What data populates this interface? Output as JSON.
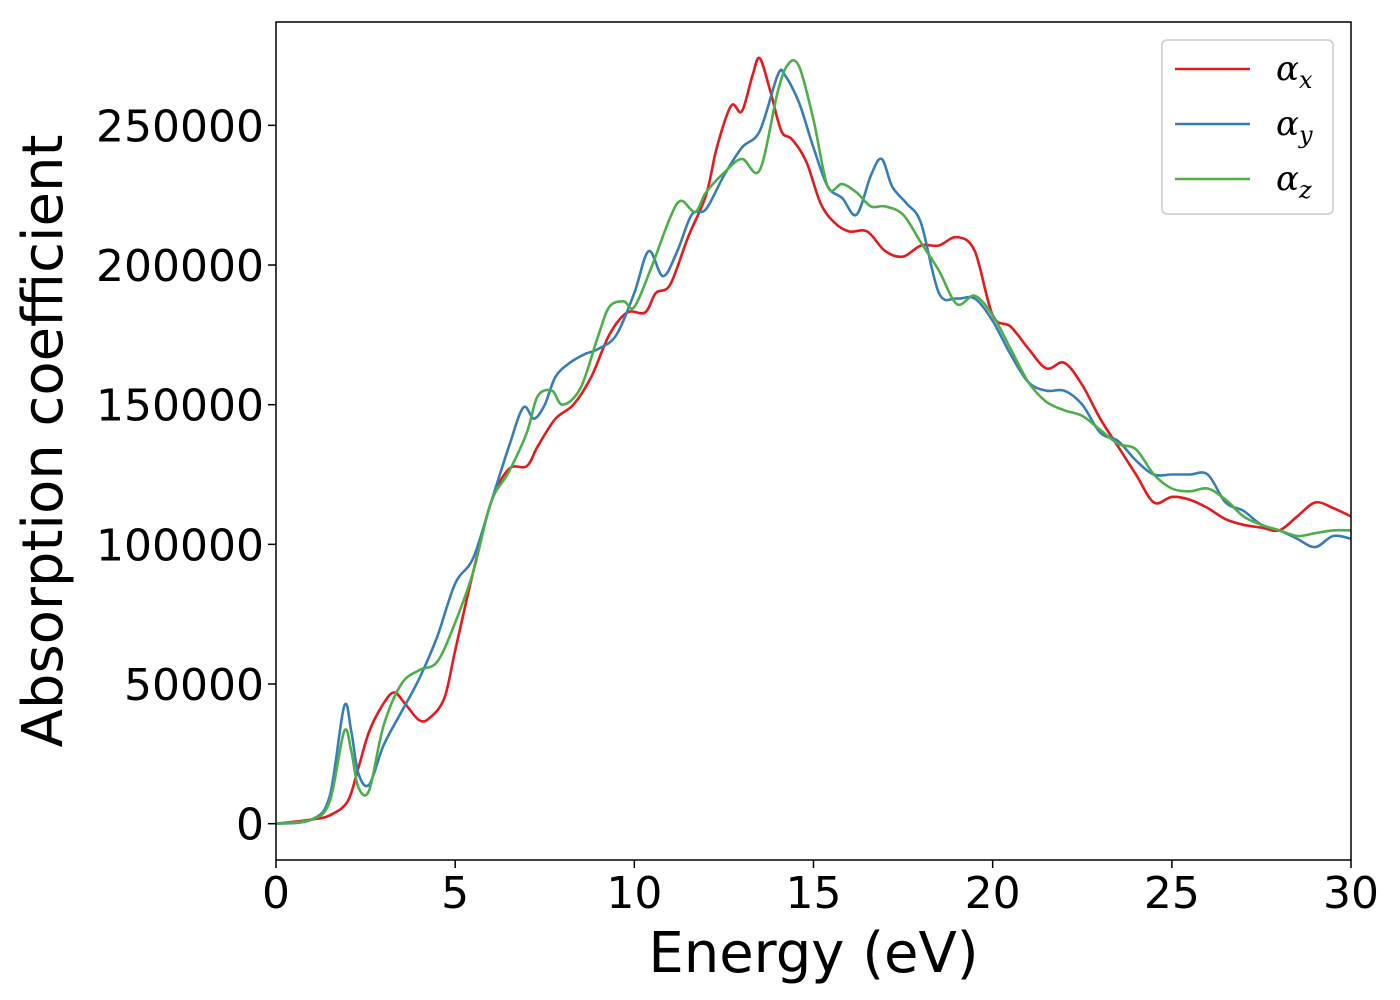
{
  "chart_data": {
    "type": "line",
    "xlabel": "Energy (eV)",
    "ylabel": "Absorption coefficient",
    "xlim": [
      0,
      30
    ],
    "ylim": [
      -13000,
      287000
    ],
    "xticks": [
      0,
      5,
      10,
      15,
      20,
      25,
      30
    ],
    "yticks": [
      0,
      50000,
      100000,
      150000,
      200000,
      250000
    ],
    "xtick_labels": [
      "0",
      "5",
      "10",
      "15",
      "20",
      "25",
      "30"
    ],
    "ytick_labels": [
      "0",
      "50000",
      "100000",
      "150000",
      "200000",
      "250000"
    ],
    "grid": false,
    "legend_position": "top-right",
    "legend": [
      {
        "symbol": "α",
        "subscript": "x",
        "color": "#e41a1c"
      },
      {
        "symbol": "α",
        "subscript": "y",
        "color": "#377eb8"
      },
      {
        "symbol": "α",
        "subscript": "z",
        "color": "#4daf4a"
      }
    ],
    "series": [
      {
        "name": "αx",
        "color": "#e41a1c",
        "x": [
          0,
          1,
          1.5,
          2,
          2.3,
          2.6,
          3,
          3.3,
          3.6,
          4,
          4.3,
          4.7,
          5,
          5.5,
          6,
          6.5,
          7,
          7.3,
          7.8,
          8.3,
          8.8,
          9.3,
          9.8,
          10.3,
          10.6,
          11,
          11.5,
          12,
          12.3,
          12.7,
          13,
          13.3,
          13.5,
          13.8,
          14.1,
          14.4,
          14.8,
          15.2,
          15.6,
          16,
          16.5,
          17,
          17.5,
          18,
          18.5,
          19,
          19.5,
          20,
          20.5,
          21,
          21.5,
          22,
          22.5,
          23,
          23.5,
          24,
          24.5,
          25,
          25.5,
          26,
          26.5,
          27,
          27.5,
          28,
          28.5,
          29,
          29.5,
          30
        ],
        "y": [
          0,
          1500,
          3000,
          8000,
          20000,
          33000,
          43000,
          47000,
          43000,
          37000,
          38000,
          45000,
          62000,
          90000,
          115000,
          127000,
          128000,
          135000,
          145000,
          150000,
          160000,
          175000,
          183000,
          183000,
          190000,
          193000,
          210000,
          225000,
          242000,
          257000,
          255000,
          268000,
          274000,
          262000,
          248000,
          245000,
          237000,
          222000,
          215000,
          212000,
          212000,
          205000,
          203000,
          207000,
          207000,
          210000,
          205000,
          182000,
          178000,
          170000,
          163000,
          165000,
          157000,
          145000,
          135000,
          125000,
          115000,
          117000,
          116000,
          113000,
          109000,
          107000,
          106000,
          105000,
          110000,
          115000,
          113000,
          110000
        ]
      },
      {
        "name": "αy",
        "color": "#377eb8",
        "x": [
          0,
          1,
          1.5,
          1.9,
          2.1,
          2.3,
          2.6,
          3,
          3.5,
          4,
          4.5,
          5,
          5.5,
          6,
          6.5,
          6.9,
          7.2,
          7.5,
          7.8,
          8.2,
          8.6,
          9,
          9.5,
          10,
          10.4,
          10.8,
          11.2,
          11.6,
          12,
          12.5,
          13,
          13.5,
          14,
          14.2,
          14.6,
          15,
          15.4,
          15.8,
          16.2,
          16.6,
          16.9,
          17.2,
          17.6,
          18,
          18.5,
          19,
          19.5,
          20,
          20.5,
          21,
          21.5,
          22,
          22.5,
          23,
          23.5,
          24,
          24.5,
          25,
          25.5,
          26,
          26.5,
          27,
          27.5,
          28,
          28.5,
          29,
          29.5,
          30
        ],
        "y": [
          0,
          1500,
          10000,
          42000,
          33000,
          18000,
          14000,
          28000,
          40000,
          52000,
          67000,
          86000,
          95000,
          115000,
          135000,
          149000,
          145000,
          150000,
          160000,
          165000,
          168000,
          170000,
          175000,
          190000,
          205000,
          196000,
          205000,
          218000,
          220000,
          232000,
          242000,
          248000,
          268000,
          268000,
          258000,
          242000,
          228000,
          224000,
          218000,
          232000,
          238000,
          228000,
          222000,
          215000,
          190000,
          188000,
          188000,
          180000,
          168000,
          158000,
          155000,
          155000,
          150000,
          140000,
          137000,
          130000,
          125000,
          125000,
          125000,
          125000,
          115000,
          112000,
          107000,
          105000,
          102000,
          99000,
          103000,
          102000
        ]
      },
      {
        "name": "αz",
        "color": "#4daf4a",
        "x": [
          0,
          1,
          1.5,
          1.9,
          2.1,
          2.3,
          2.6,
          3,
          3.5,
          4,
          4.5,
          5,
          5.5,
          6,
          6.5,
          7,
          7.3,
          7.7,
          8,
          8.5,
          9,
          9.3,
          9.7,
          10,
          10.5,
          11,
          11.3,
          11.7,
          12,
          12.5,
          13,
          13.5,
          14,
          14.3,
          14.6,
          15,
          15.4,
          15.8,
          16.2,
          16.6,
          17,
          17.5,
          18,
          18.5,
          19,
          19.5,
          20,
          20.5,
          21,
          21.5,
          22,
          22.5,
          23,
          23.5,
          24,
          24.5,
          25,
          25.5,
          26,
          26.5,
          27,
          27.5,
          28,
          28.5,
          29,
          29.5,
          30
        ],
        "y": [
          0,
          1500,
          8000,
          33000,
          26000,
          13000,
          12000,
          35000,
          50000,
          55000,
          58000,
          72000,
          90000,
          115000,
          126000,
          140000,
          153000,
          155000,
          150000,
          156000,
          175000,
          185000,
          187000,
          185000,
          200000,
          217000,
          223000,
          219000,
          226000,
          233000,
          238000,
          234000,
          262000,
          272000,
          271000,
          252000,
          228000,
          229000,
          226000,
          221000,
          221000,
          218000,
          208000,
          198000,
          186000,
          189000,
          182000,
          170000,
          158000,
          151000,
          148000,
          146000,
          141000,
          136000,
          134000,
          125000,
          120000,
          119000,
          120000,
          116000,
          110000,
          107000,
          105000,
          103000,
          104000,
          105000,
          105000
        ]
      }
    ]
  }
}
